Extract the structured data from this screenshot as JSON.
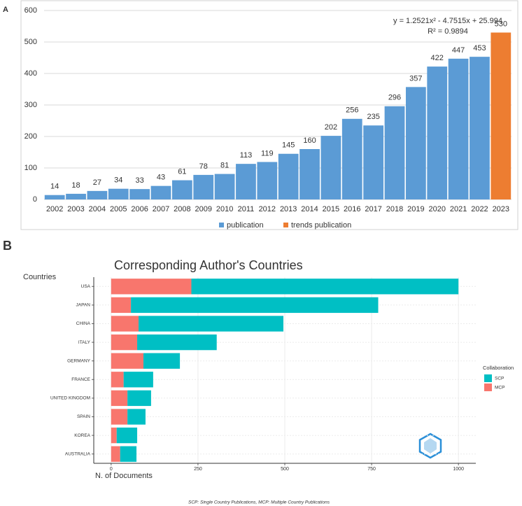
{
  "chart_data": [
    {
      "panel": "A",
      "type": "bar",
      "categories": [
        "2002",
        "2003",
        "2004",
        "2005",
        "2006",
        "2007",
        "2008",
        "2009",
        "2010",
        "2011",
        "2012",
        "2013",
        "2014",
        "2015",
        "2016",
        "2017",
        "2018",
        "2019",
        "2020",
        "2021",
        "2022",
        "2023"
      ],
      "series": [
        {
          "name": "publication",
          "color": "#5B9BD5",
          "values": [
            14,
            18,
            27,
            34,
            33,
            43,
            61,
            78,
            81,
            113,
            119,
            145,
            160,
            202,
            256,
            235,
            296,
            357,
            422,
            447,
            453,
            null
          ]
        },
        {
          "name": "trends publication",
          "color": "#ED7D31",
          "values": [
            null,
            null,
            null,
            null,
            null,
            null,
            null,
            null,
            null,
            null,
            null,
            null,
            null,
            null,
            null,
            null,
            null,
            null,
            null,
            null,
            null,
            530
          ]
        }
      ],
      "ylim": [
        0,
        600
      ],
      "yticks": [
        0,
        100,
        200,
        300,
        400,
        500,
        600
      ],
      "grid": true,
      "legend": "bottom",
      "annotations": [
        "y = 1.2521x² - 4.7515x + 25.994",
        "R² = 0.9894"
      ]
    },
    {
      "panel": "B",
      "type": "bar",
      "orientation": "horizontal",
      "stacked": true,
      "title": "Corresponding Author's Countries",
      "y_label": "Countries",
      "x_label": "N. of Documents",
      "categories": [
        "USA",
        "JAPAN",
        "CHINA",
        "ITALY",
        "GERMANY",
        "FRANCE",
        "UNITED KINGDOM",
        "SPAIN",
        "KOREA",
        "AUSTRALIA"
      ],
      "series": [
        {
          "name": "MCP",
          "color": "#F8766D",
          "values": [
            231,
            57,
            79,
            75,
            93,
            36,
            47,
            47,
            16,
            26
          ]
        },
        {
          "name": "SCP",
          "color": "#00BFC4",
          "values": [
            769,
            712,
            417,
            229,
            105,
            85,
            68,
            52,
            59,
            47
          ]
        }
      ],
      "xlim": [
        -50,
        1050
      ],
      "xticks": [
        0,
        250,
        500,
        750,
        1000
      ],
      "grid": true,
      "legend_title": "Collaboration",
      "legend": "right",
      "note": "SCP: Single Country Publications, MCP: Multiple Country Publications"
    }
  ]
}
